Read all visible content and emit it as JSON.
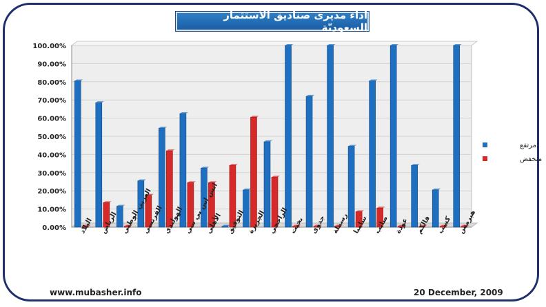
{
  "title": "اداء مديرى صناديق الاستثمار السعوديّة",
  "footer": {
    "website": "www.mubasher.info",
    "date": "20 December, 2009"
  },
  "colors": {
    "series1": "#1f6fc0",
    "series2": "#d62a2a",
    "frame": "#1e2f6b",
    "plot_bg": "#eeeeee"
  },
  "chart_data": {
    "type": "bar",
    "title": "اداء مديرى صناديق الاستثمار السعوديّة",
    "xlabel": "",
    "ylabel": "",
    "ylim": [
      0,
      100
    ],
    "yticks": [
      "0.00%",
      "10.00%",
      "20.00%",
      "30.00%",
      "40.00%",
      "50.00%",
      "60.00%",
      "70.00%",
      "80.00%",
      "90.00%",
      "100.00%"
    ],
    "categories": [
      "البلاد",
      "الرياض",
      "العربي الوطني",
      "الفرنسي",
      "الهولندي",
      "اتش اس بي سي",
      "الأهلي",
      "التوفيق",
      "الجزيرة",
      "الراجحي",
      "بخيت",
      "جدوى",
      "رسملة",
      "سامبا",
      "صائب",
      "عودة",
      "فالكم",
      "كسب",
      "هيرمس"
    ],
    "series": [
      {
        "name": "مرتفع",
        "values": [
          80.5,
          68.5,
          11.5,
          25.5,
          54.5,
          62.5,
          32.5,
          0.5,
          20.5,
          47,
          100,
          72,
          100,
          44.5,
          80.5,
          100,
          34,
          20.5,
          100
        ]
      },
      {
        "name": "منخفض",
        "values": [
          0.5,
          13.5,
          0.5,
          17.5,
          42,
          24.5,
          24.5,
          34,
          60.5,
          27.5,
          0.5,
          0.5,
          0.5,
          8.5,
          10.5,
          0.5,
          0.5,
          0.5,
          0.5
        ]
      }
    ],
    "legend_position": "right",
    "grid": true
  }
}
